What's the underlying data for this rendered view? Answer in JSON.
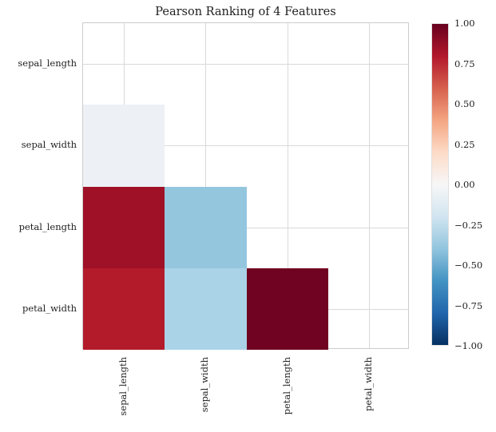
{
  "chart_data": {
    "type": "heatmap",
    "title": "Pearson Ranking of 4 Features",
    "features": [
      "sepal_length",
      "sepal_width",
      "petal_length",
      "petal_width"
    ],
    "x_tick_labels": [
      "sepal_length",
      "sepal_width",
      "petal_length",
      "petal_width"
    ],
    "y_tick_labels": [
      "sepal_length",
      "sepal_width",
      "petal_length",
      "petal_width"
    ],
    "mask": "upper triangle and diagonal are blank (white)",
    "grid": true,
    "cells": [
      {
        "row": 1,
        "col": 0,
        "row_label": "sepal_width",
        "col_label": "sepal_length",
        "value": -0.12,
        "color": "#edf1f5"
      },
      {
        "row": 2,
        "col": 0,
        "row_label": "petal_length",
        "col_label": "sepal_length",
        "value": 0.87,
        "color": "#9e1127"
      },
      {
        "row": 2,
        "col": 1,
        "row_label": "petal_length",
        "col_label": "sepal_width",
        "value": -0.43,
        "color": "#94c6de"
      },
      {
        "row": 3,
        "col": 0,
        "row_label": "petal_width",
        "col_label": "sepal_length",
        "value": 0.82,
        "color": "#b31b2b"
      },
      {
        "row": 3,
        "col": 1,
        "row_label": "petal_width",
        "col_label": "sepal_width",
        "value": -0.37,
        "color": "#abd3e7"
      },
      {
        "row": 3,
        "col": 2,
        "row_label": "petal_width",
        "col_label": "petal_length",
        "value": 0.96,
        "color": "#700321"
      }
    ],
    "colorbar": {
      "tick_labels": [
        "1.00",
        "0.75",
        "0.50",
        "0.25",
        "0.00",
        "−0.25",
        "−0.50",
        "−0.75",
        "−1.00"
      ],
      "range": [
        -1.0,
        1.0
      ],
      "colormap": "RdBu_r",
      "gradient_stops_top_to_bottom": [
        "#67001f",
        "#b2182b",
        "#d6604d",
        "#f4a582",
        "#fddbc7",
        "#f7f7f7",
        "#d1e5f0",
        "#92c5de",
        "#4393c3",
        "#2166ac",
        "#053061"
      ]
    },
    "colors": {
      "grid": "#d9d9d9",
      "axes_edge": "#cccccc",
      "text": "#1f1f1f",
      "background": "#ffffff"
    }
  }
}
